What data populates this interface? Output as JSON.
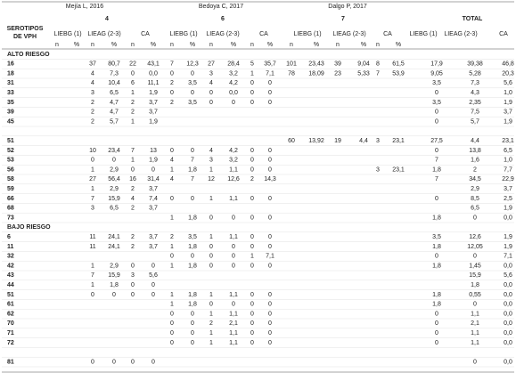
{
  "header": {
    "serotipos": [
      "SEROTIPOS",
      "DE VPH"
    ],
    "studies": [
      "Mejía L, 2016",
      "Bedoya C, 2017",
      "Dalgo P, 2017"
    ],
    "counts": [
      "4",
      "6",
      "7",
      "TOTAL"
    ],
    "groups": [
      "LIEBG (1)",
      "LIEAG (2-3)",
      "CA"
    ],
    "n": "n",
    "pct": "%"
  },
  "table": {
    "rows": [
      [
        "ALTO RIESGO"
      ],
      [
        "16",
        null,
        null,
        "37",
        "80,7",
        "22",
        "43,1",
        "7",
        "12,3",
        "27",
        "28,4",
        "5",
        "35,7",
        "101",
        "23,43",
        "39",
        "9,04",
        "8",
        "61,5",
        "17,9",
        "39,38",
        "46,8"
      ],
      [
        "18",
        null,
        null,
        "4",
        "7,3",
        "0",
        "0,0",
        "0",
        "0",
        "3",
        "3,2",
        "1",
        "7,1",
        "78",
        "18,09",
        "23",
        "5,33",
        "7",
        "53,9",
        "9,05",
        "5,28",
        "20,3"
      ],
      [
        "31",
        null,
        null,
        "4",
        "10,4",
        "6",
        "11,1",
        "2",
        "3,5",
        "4",
        "4,2",
        "0",
        "0",
        null,
        null,
        null,
        null,
        null,
        null,
        "3,5",
        "7,3",
        "5,6"
      ],
      [
        "33",
        null,
        null,
        "3",
        "6,5",
        "1",
        "1,9",
        "0",
        "0",
        "0",
        "0,0",
        "0",
        "0",
        null,
        null,
        null,
        null,
        null,
        null,
        "0",
        "4,3",
        "1,0"
      ],
      [
        "35",
        null,
        null,
        "2",
        "4,7",
        "2",
        "3,7",
        "2",
        "3,5",
        "0",
        "0",
        "0",
        "0",
        null,
        null,
        null,
        null,
        null,
        null,
        "3,5",
        "2,35",
        "1,9"
      ],
      [
        "39",
        null,
        null,
        "2",
        "4,7",
        "2",
        "3,7",
        null,
        null,
        null,
        null,
        null,
        null,
        null,
        null,
        null,
        null,
        null,
        null,
        "0",
        "7,5",
        "3,7"
      ],
      [
        "45",
        null,
        null,
        "2",
        "5,7",
        "1",
        "1,9",
        null,
        null,
        null,
        null,
        null,
        null,
        null,
        null,
        null,
        null,
        null,
        null,
        "0",
        "5,7",
        "1,9"
      ],
      [
        null
      ],
      [
        "51",
        null,
        null,
        null,
        null,
        null,
        null,
        null,
        null,
        null,
        null,
        null,
        null,
        "60",
        "13,92",
        "19",
        "4,4",
        "3",
        "23,1",
        "27,5",
        "4,4",
        "23,1"
      ],
      [
        "52",
        null,
        null,
        "10",
        "23,4",
        "7",
        "13",
        "0",
        "0",
        "4",
        "4,2",
        "0",
        "0",
        null,
        null,
        null,
        null,
        null,
        null,
        "0",
        "13,8",
        "6,5"
      ],
      [
        "53",
        null,
        null,
        "0",
        "0",
        "1",
        "1,9",
        "4",
        "7",
        "3",
        "3,2",
        "0",
        "0",
        null,
        null,
        null,
        null,
        null,
        null,
        "7",
        "1,6",
        "1,0"
      ],
      [
        "56",
        null,
        null,
        "1",
        "2,9",
        "0",
        "0",
        "1",
        "1,8",
        "1",
        "1,1",
        "0",
        "0",
        null,
        null,
        null,
        null,
        "3",
        "23,1",
        "1,8",
        "2",
        "7,7"
      ],
      [
        "58",
        null,
        null,
        "27",
        "56,4",
        "16",
        "31,4",
        "4",
        "7",
        "12",
        "12,6",
        "2",
        "14,3",
        null,
        null,
        null,
        null,
        null,
        null,
        "7",
        "34,5",
        "22,9"
      ],
      [
        "59",
        null,
        null,
        "1",
        "2,9",
        "2",
        "3,7",
        null,
        null,
        null,
        null,
        null,
        null,
        null,
        null,
        null,
        null,
        null,
        null,
        null,
        "2,9",
        "3,7"
      ],
      [
        "66",
        null,
        null,
        "7",
        "15,9",
        "4",
        "7,4",
        "0",
        "0",
        "1",
        "1,1",
        "0",
        "0",
        null,
        null,
        null,
        null,
        null,
        null,
        "0",
        "8,5",
        "2,5"
      ],
      [
        "68",
        null,
        null,
        "3",
        "6,5",
        "2",
        "3,7",
        null,
        null,
        null,
        null,
        null,
        null,
        null,
        null,
        null,
        null,
        null,
        null,
        null,
        "6,5",
        "1,9"
      ],
      [
        "73",
        null,
        null,
        null,
        null,
        null,
        null,
        "1",
        "1,8",
        "0",
        "0",
        "0",
        "0",
        null,
        null,
        null,
        null,
        null,
        null,
        "1,8",
        "0",
        "0,0"
      ],
      [
        "BAJO RIESGO"
      ],
      [
        "6",
        null,
        null,
        "11",
        "24,1",
        "2",
        "3,7",
        "2",
        "3,5",
        "1",
        "1,1",
        "0",
        "0",
        null,
        null,
        null,
        null,
        null,
        null,
        "3,5",
        "12,6",
        "1,9"
      ],
      [
        "11",
        null,
        null,
        "11",
        "24,1",
        "2",
        "3,7",
        "1",
        "1,8",
        "0",
        "0",
        "0",
        "0",
        null,
        null,
        null,
        null,
        null,
        null,
        "1,8",
        "12,05",
        "1,9"
      ],
      [
        "32",
        null,
        null,
        null,
        null,
        null,
        null,
        "0",
        "0",
        "0",
        "0",
        "1",
        "7,1",
        null,
        null,
        null,
        null,
        null,
        null,
        "0",
        "0",
        "7,1"
      ],
      [
        "42",
        null,
        null,
        "1",
        "2,9",
        "0",
        "0",
        "1",
        "1,8",
        "0",
        "0",
        "0",
        "0",
        null,
        null,
        null,
        null,
        null,
        null,
        "1,8",
        "1,45",
        "0,0"
      ],
      [
        "43",
        null,
        null,
        "7",
        "15,9",
        "3",
        "5,6",
        null,
        null,
        null,
        null,
        null,
        null,
        null,
        null,
        null,
        null,
        null,
        null,
        null,
        "15,9",
        "5,6"
      ],
      [
        "44",
        null,
        null,
        "1",
        "1,8",
        "0",
        "0",
        null,
        null,
        null,
        null,
        null,
        null,
        null,
        null,
        null,
        null,
        null,
        null,
        null,
        "1,8",
        "0,0"
      ],
      [
        "51",
        null,
        null,
        "0",
        "0",
        "0",
        "0",
        "1",
        "1,8",
        "1",
        "1,1",
        "0",
        "0",
        null,
        null,
        null,
        null,
        null,
        null,
        "1,8",
        "0,55",
        "0,0"
      ],
      [
        "61",
        null,
        null,
        null,
        null,
        null,
        null,
        "1",
        "1,8",
        "0",
        "0",
        "0",
        "0",
        null,
        null,
        null,
        null,
        null,
        null,
        "1,8",
        "0",
        "0,0"
      ],
      [
        "62",
        null,
        null,
        null,
        null,
        null,
        null,
        "0",
        "0",
        "1",
        "1,1",
        "0",
        "0",
        null,
        null,
        null,
        null,
        null,
        null,
        "0",
        "1,1",
        "0,0"
      ],
      [
        "70",
        null,
        null,
        null,
        null,
        null,
        null,
        "0",
        "0",
        "2",
        "2,1",
        "0",
        "0",
        null,
        null,
        null,
        null,
        null,
        null,
        "0",
        "2,1",
        "0,0"
      ],
      [
        "71",
        null,
        null,
        null,
        null,
        null,
        null,
        "0",
        "0",
        "1",
        "1,1",
        "0",
        "0",
        null,
        null,
        null,
        null,
        null,
        null,
        "0",
        "1,1",
        "0,0"
      ],
      [
        "72",
        null,
        null,
        null,
        null,
        null,
        null,
        "0",
        "0",
        "1",
        "1,1",
        "0",
        "0",
        null,
        null,
        null,
        null,
        null,
        null,
        "0",
        "1,1",
        "0,0"
      ],
      [
        null
      ],
      [
        "81",
        null,
        null,
        "0",
        "0",
        "0",
        "0",
        null,
        null,
        null,
        null,
        null,
        null,
        null,
        null,
        null,
        null,
        null,
        null,
        null,
        "0",
        "0,0"
      ]
    ]
  }
}
